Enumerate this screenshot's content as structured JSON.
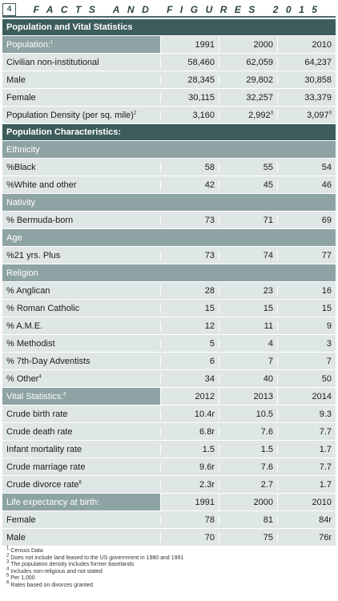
{
  "header": {
    "page_number": "4",
    "title": "FACTS AND FIGURES 2015"
  },
  "sections": {
    "pop_vital": "Population and Vital Statistics",
    "pop_chars": "Population Characteristics:"
  },
  "population": {
    "label": "Population:",
    "sup": "1",
    "years": [
      "1991",
      "2000",
      "2010"
    ],
    "rows": [
      {
        "label": "Civilian non-institutional",
        "values": [
          "58,460",
          "62,059",
          "64,237"
        ]
      },
      {
        "label": "Male",
        "values": [
          "28,345",
          "29,802",
          "30,858"
        ]
      },
      {
        "label": "Female",
        "values": [
          "30,115",
          "32,257",
          "33,379"
        ]
      }
    ],
    "density": {
      "label": "Population Density (per sq. mile)",
      "sup": "2",
      "values": [
        "3,160",
        "2,992",
        "3,097"
      ],
      "value_sups": [
        "",
        "3",
        "3"
      ]
    }
  },
  "ethnicity": {
    "label": "Ethnicity",
    "rows": [
      {
        "label": "%Black",
        "values": [
          "58",
          "55",
          "54"
        ]
      },
      {
        "label": "%White and other",
        "values": [
          "42",
          "45",
          "46"
        ]
      }
    ]
  },
  "nativity": {
    "label": "Nativity",
    "rows": [
      {
        "label": "% Bermuda-born",
        "values": [
          "73",
          "71",
          "69"
        ]
      }
    ]
  },
  "age": {
    "label": "Age",
    "rows": [
      {
        "label": "%21 yrs. Plus",
        "values": [
          "73",
          "74",
          "77"
        ]
      }
    ]
  },
  "religion": {
    "label": "Religion",
    "rows": [
      {
        "label": "% Anglican",
        "values": [
          "28",
          "23",
          "16"
        ]
      },
      {
        "label": "% Roman Catholic",
        "values": [
          "15",
          "15",
          "15"
        ]
      },
      {
        "label": "% A.M.E.",
        "values": [
          "12",
          "11",
          "9"
        ]
      },
      {
        "label": "% Methodist",
        "values": [
          "5",
          "4",
          "3"
        ]
      },
      {
        "label": "% 7th-Day Adventists",
        "values": [
          "6",
          "7",
          "7"
        ]
      }
    ],
    "other": {
      "label": "% Other",
      "sup": "4",
      "values": [
        "34",
        "40",
        "50"
      ]
    }
  },
  "vital": {
    "label": "Vital Statistics:",
    "sup": "5",
    "years": [
      "2012",
      "2013",
      "2014"
    ],
    "rows": [
      {
        "label": "Crude birth rate",
        "values": [
          "10.4r",
          "10.5",
          "9.3"
        ]
      },
      {
        "label": "Crude death rate",
        "values": [
          "6.8r",
          "7.6",
          "7.7"
        ]
      },
      {
        "label": "Infant mortality rate",
        "values": [
          "1.5",
          "1.5",
          "1.7"
        ]
      },
      {
        "label": "Crude marriage rate",
        "values": [
          "9.6r",
          "7.6",
          "7.7"
        ]
      }
    ],
    "divorce": {
      "label": "Crude divorce rate",
      "sup": "6",
      "values": [
        "2.3r",
        "2.7",
        "1.7"
      ]
    }
  },
  "life": {
    "label": "Life expectancy at birth:",
    "years": [
      "1991",
      "2000",
      "2010"
    ],
    "rows": [
      {
        "label": "Female",
        "values": [
          "78",
          "81",
          "84r"
        ]
      },
      {
        "label": "Male",
        "values": [
          "70",
          "75",
          "76r"
        ]
      }
    ]
  },
  "footnotes": [
    "Census Data",
    "Does not include land leased to the US government in 1980 and 1991",
    "The population density includes former baselands",
    "Includes non-religious and not stated",
    "Per 1,000",
    "Rates based on divorces granted"
  ],
  "footnote_marks": [
    "1",
    "2",
    "3",
    "4",
    "5",
    "6"
  ]
}
